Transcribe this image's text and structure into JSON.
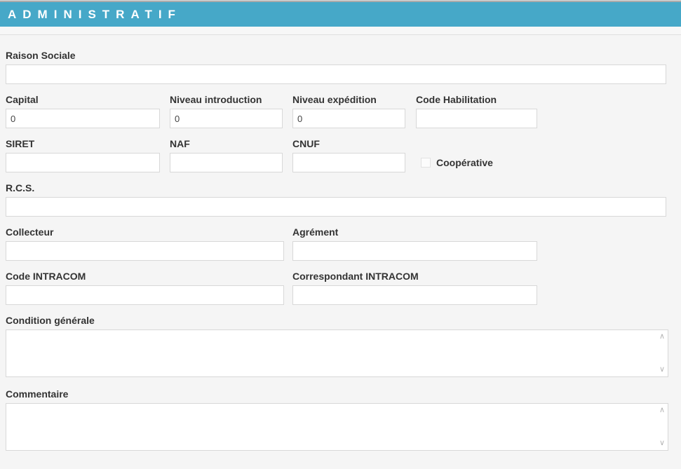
{
  "section": {
    "title": "ADMINISTRATIF"
  },
  "colors": {
    "header_bg": "#46a8c8",
    "header_text": "#ffffff",
    "page_bg": "#f5f5f5",
    "label_text": "#333333",
    "input_border": "#d8d8d8"
  },
  "icons": {
    "scrollbar_up": "∧",
    "scrollbar_down": "∨"
  },
  "form": {
    "fields": {
      "raison_sociale": {
        "label": "Raison Sociale",
        "value": ""
      },
      "capital": {
        "label": "Capital",
        "value": "0"
      },
      "niveau_introduction": {
        "label": "Niveau introduction",
        "value": "0"
      },
      "niveau_expedition": {
        "label": "Niveau expédition",
        "value": "0"
      },
      "code_habilitation": {
        "label": "Code Habilitation",
        "value": ""
      },
      "siret": {
        "label": "SIRET",
        "value": ""
      },
      "naf": {
        "label": "NAF",
        "value": ""
      },
      "cnuf": {
        "label": "CNUF",
        "value": ""
      },
      "cooperative": {
        "label": "Coopérative",
        "checked": false
      },
      "rcs": {
        "label": "R.C.S.",
        "value": ""
      },
      "collecteur": {
        "label": "Collecteur",
        "value": ""
      },
      "agrement": {
        "label": "Agrément",
        "value": ""
      },
      "code_intracom": {
        "label": "Code INTRACOM",
        "value": ""
      },
      "correspondant_intracom": {
        "label": "Correspondant INTRACOM",
        "value": ""
      },
      "condition_generale": {
        "label": "Condition générale",
        "value": ""
      },
      "commentaire": {
        "label": "Commentaire",
        "value": ""
      }
    }
  }
}
